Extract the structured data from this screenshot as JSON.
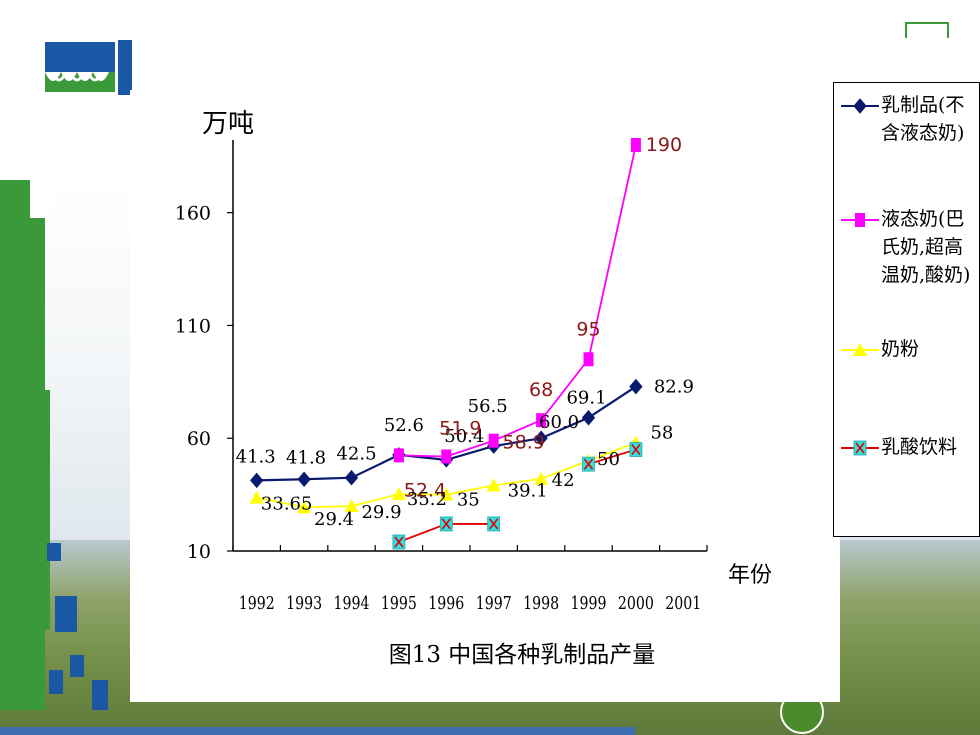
{
  "chart_data": {
    "type": "line",
    "title": "图13 中国各种乳制品产量",
    "ylabel": "万吨",
    "xlabel": "年份",
    "categories": [
      "1992",
      "1993",
      "1994",
      "1995",
      "1996",
      "1997",
      "1998",
      "1999",
      "2000",
      "2001"
    ],
    "ylim": [
      10,
      190
    ],
    "yticks": [
      "10",
      "60",
      "110",
      "160"
    ],
    "series": [
      {
        "name": "乳制品(不含液态奶)",
        "color": "#0a1a6e",
        "marker": "diamond",
        "values": [
          41.3,
          41.8,
          42.5,
          52.6,
          50.4,
          56.5,
          60.0,
          69.1,
          82.9,
          null
        ],
        "labels": [
          "41.3",
          "41.8",
          "42.5",
          "52.6",
          "50.4",
          "56.5",
          "60.0",
          "69.1",
          "82.9",
          null
        ]
      },
      {
        "name": "液态奶(巴氏奶,超高温奶,酸奶)",
        "color": "#ff00ff",
        "label_color": "#8b1a1a",
        "marker": "square",
        "values": [
          null,
          null,
          null,
          52.4,
          51.9,
          58.9,
          68,
          95,
          190,
          null
        ],
        "labels": [
          null,
          null,
          null,
          "52.4",
          "51.9",
          "58.9",
          "68",
          "95",
          "190",
          null
        ]
      },
      {
        "name": "奶粉",
        "color": "#ffff00",
        "marker": "triangle",
        "values": [
          33.65,
          29.4,
          29.9,
          35.2,
          35,
          39.1,
          42,
          50,
          58,
          null
        ],
        "labels": [
          "33.65",
          "29.4",
          "29.9",
          "35.2",
          "35",
          "39.1",
          "42",
          "50",
          "58",
          null
        ]
      },
      {
        "name": "乳酸饮料",
        "color": "#e00000",
        "marker": "x",
        "values": [
          null,
          null,
          null,
          14,
          22,
          22,
          null,
          48.5,
          55,
          null
        ],
        "labels": [
          null,
          null,
          null,
          null,
          null,
          null,
          null,
          null,
          null,
          null
        ]
      }
    ],
    "legend": {
      "placement": "right",
      "items": [
        {
          "text": "乳制品(不含液态奶)"
        },
        {
          "text": "液态奶(巴氏奶,超高温奶,酸奶)"
        },
        {
          "text": "奶粉"
        },
        {
          "text": "乳酸饮料"
        }
      ]
    }
  }
}
